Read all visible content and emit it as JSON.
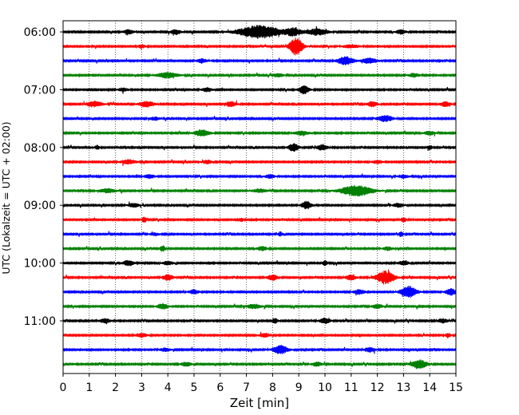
{
  "chart_data": {
    "type": "line",
    "title": "",
    "xlabel": "Zeit  [min]",
    "ylabel": "UTC (Lokalzeit = UTC + 02:00)",
    "xlim": [
      0,
      15
    ],
    "x_ticks": [
      "0",
      "1",
      "2",
      "3",
      "4",
      "5",
      "6",
      "7",
      "8",
      "9",
      "10",
      "11",
      "12",
      "13",
      "14",
      "15"
    ],
    "y_tick_labels": [
      "06:00",
      "07:00",
      "08:00",
      "09:00",
      "10:00",
      "11:00"
    ],
    "row_interval_min": 15,
    "rows": 24,
    "grid": "vertical dotted lines at each minute",
    "trace_colors": [
      "#000000",
      "#ff0000",
      "#0000ff",
      "#008000"
    ],
    "bursts": [
      [
        [
          7.5,
          1.8,
          0.8
        ],
        [
          8.8,
          1.0,
          0.3
        ],
        [
          9.7,
          0.9,
          0.4
        ],
        [
          4.3,
          0.7,
          0.2
        ],
        [
          2.5,
          0.6,
          0.2
        ],
        [
          12.9,
          0.6,
          0.2
        ]
      ],
      [
        [
          8.9,
          2.4,
          0.25
        ],
        [
          3.0,
          0.5,
          0.15
        ],
        [
          11.0,
          0.5,
          0.3
        ]
      ],
      [
        [
          10.8,
          1.2,
          0.3
        ],
        [
          11.7,
          0.8,
          0.3
        ],
        [
          5.3,
          0.6,
          0.2
        ]
      ],
      [
        [
          4.0,
          0.8,
          0.4
        ],
        [
          13.4,
          0.6,
          0.2
        ],
        [
          8.2,
          0.5,
          0.2
        ]
      ],
      [
        [
          9.2,
          1.2,
          0.2
        ],
        [
          5.5,
          0.6,
          0.2
        ],
        [
          2.3,
          0.5,
          0.2
        ]
      ],
      [
        [
          1.2,
          0.8,
          0.3
        ],
        [
          3.2,
          0.8,
          0.3
        ],
        [
          6.4,
          0.8,
          0.2
        ],
        [
          11.8,
          0.7,
          0.2
        ],
        [
          14.6,
          0.7,
          0.2
        ]
      ],
      [
        [
          12.3,
          0.9,
          0.3
        ],
        [
          3.5,
          0.5,
          0.2
        ]
      ],
      [
        [
          5.3,
          0.9,
          0.3
        ],
        [
          9.1,
          0.6,
          0.3
        ],
        [
          14.0,
          0.6,
          0.2
        ]
      ],
      [
        [
          8.8,
          1.2,
          0.2
        ],
        [
          9.9,
          0.8,
          0.2
        ],
        [
          1.3,
          0.6,
          0.1
        ],
        [
          14.0,
          0.6,
          0.1
        ]
      ],
      [
        [
          2.5,
          0.6,
          0.3
        ],
        [
          5.5,
          0.5,
          0.2
        ],
        [
          12.0,
          0.5,
          0.2
        ]
      ],
      [
        [
          3.3,
          0.6,
          0.2
        ],
        [
          7.9,
          0.5,
          0.2
        ],
        [
          13.0,
          0.5,
          0.2
        ]
      ],
      [
        [
          11.2,
          1.5,
          0.6
        ],
        [
          1.7,
          0.6,
          0.3
        ],
        [
          7.5,
          0.5,
          0.3
        ]
      ],
      [
        [
          9.3,
          1.1,
          0.2
        ],
        [
          2.7,
          0.6,
          0.2
        ],
        [
          12.8,
          0.6,
          0.2
        ]
      ],
      [
        [
          3.1,
          0.7,
          0.1
        ],
        [
          6.8,
          0.5,
          0.1
        ],
        [
          13.0,
          0.7,
          0.1
        ]
      ],
      [
        [
          8.3,
          0.6,
          0.1
        ],
        [
          12.9,
          0.7,
          0.1
        ],
        [
          3.5,
          0.4,
          0.2
        ]
      ],
      [
        [
          3.8,
          0.8,
          0.1
        ],
        [
          7.6,
          0.6,
          0.2
        ],
        [
          12.4,
          0.5,
          0.2
        ]
      ],
      [
        [
          2.5,
          0.8,
          0.2
        ],
        [
          4.0,
          0.6,
          0.2
        ],
        [
          10.0,
          0.7,
          0.1
        ],
        [
          13.0,
          0.6,
          0.2
        ]
      ],
      [
        [
          12.3,
          1.8,
          0.35
        ],
        [
          4.0,
          0.9,
          0.2
        ],
        [
          8.0,
          0.8,
          0.2
        ],
        [
          11.0,
          0.8,
          0.2
        ]
      ],
      [
        [
          13.2,
          1.6,
          0.3
        ],
        [
          14.8,
          0.9,
          0.2
        ],
        [
          11.3,
          0.7,
          0.2
        ],
        [
          5.0,
          0.6,
          0.2
        ]
      ],
      [
        [
          3.8,
          0.8,
          0.2
        ],
        [
          7.3,
          0.6,
          0.3
        ],
        [
          12.0,
          0.6,
          0.2
        ]
      ],
      [
        [
          1.6,
          0.7,
          0.2
        ],
        [
          8.1,
          0.7,
          0.1
        ],
        [
          10.0,
          0.8,
          0.2
        ],
        [
          14.5,
          0.6,
          0.2
        ]
      ],
      [
        [
          3.0,
          0.6,
          0.2
        ],
        [
          7.7,
          0.6,
          0.2
        ],
        [
          14.7,
          0.7,
          0.1
        ]
      ],
      [
        [
          8.3,
          1.2,
          0.3
        ],
        [
          11.7,
          0.7,
          0.2
        ],
        [
          3.9,
          0.5,
          0.2
        ]
      ],
      [
        [
          13.6,
          1.2,
          0.3
        ],
        [
          4.7,
          0.6,
          0.2
        ],
        [
          9.7,
          0.6,
          0.2
        ]
      ]
    ]
  }
}
